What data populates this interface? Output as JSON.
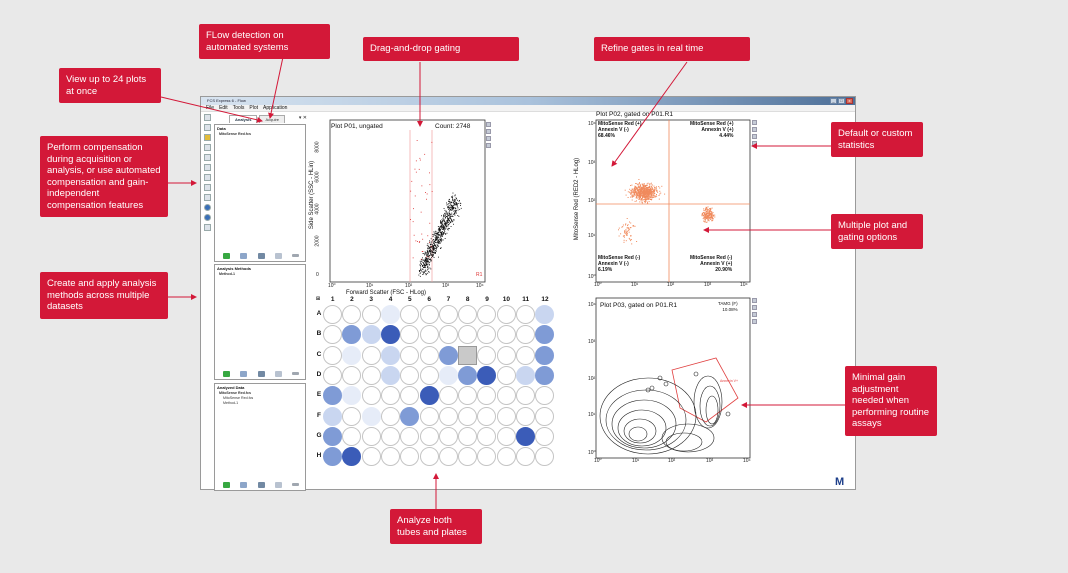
{
  "window": {
    "title": "FCS Express 6 - Flow",
    "menu": [
      "File",
      "Edit",
      "Tools",
      "Plot",
      "Application"
    ],
    "controls": [
      "_",
      "□",
      "x"
    ]
  },
  "left_panel": {
    "tabs": [
      "Analysis",
      "Acquire"
    ],
    "data_box": {
      "header": "Data",
      "item": "MitoSense Red.fcs"
    },
    "methods_box": {
      "header": "Analysis Methods",
      "item": "Method-1"
    },
    "analyzed_box": {
      "header": "Analyzed Data",
      "items": [
        "MitoSense Red.fcs",
        "MitoSense Red.fcs",
        "Method-1"
      ]
    }
  },
  "plot1": {
    "title": "Plot P01, ungated",
    "count": "Count: 2748",
    "xlabel": "Forward Scatter (FSC - HLog)",
    "ylabel": "Side Scatter (SSC - HLin)",
    "yticks": [
      "0",
      "2000",
      "4000",
      "6000",
      "8000"
    ],
    "xticks": [
      "10⁰",
      "10¹",
      "10²",
      "10³",
      "10⁴"
    ],
    "gate_label": "R1"
  },
  "plot2": {
    "title": "Plot P02, gated on P01.R1",
    "quadrants": {
      "ul": "MitoSense Red (+)\nAnnexin V (-)\n68.46%",
      "ur": "MitoSense Red (+)\nAnnexin V (+)\n4.44%",
      "ll": "MitoSense Red (-)\nAnnexin V (-)\n6.19%",
      "lr": "MitoSense Red (-)\nAnnexin V (+)\n20.90%"
    },
    "ylabel": "MitoSense Red (RED2 - HLog)",
    "xticks": [
      "10⁰",
      "10¹",
      "10²",
      "10³",
      "10⁴"
    ],
    "yticks": [
      "10⁰",
      "10¹",
      "10²",
      "10³",
      "10⁴"
    ]
  },
  "plot3": {
    "title": "Plot P03, gated on P01.R1",
    "stat": "TAMG (F)\n10.08%",
    "xticks": [
      "10⁰",
      "10¹",
      "10²",
      "10³",
      "10⁴"
    ],
    "yticks": [
      "10⁰",
      "10¹",
      "10²",
      "10³",
      "10⁴"
    ],
    "gate_label": "Annexin V+"
  },
  "plate": {
    "columns": [
      "1",
      "2",
      "3",
      "4",
      "5",
      "6",
      "7",
      "8",
      "9",
      "10",
      "11",
      "12"
    ],
    "rows": [
      "A",
      "B",
      "C",
      "D",
      "E",
      "F",
      "G",
      "H"
    ]
  },
  "callouts": [
    "View up to 24 plots at once",
    "FLow detection on automated systems",
    "Drag-and-drop gating",
    "Refine gates in real time",
    "Perform compensation during acquisition or analysis, or use automated compensation and gain-independent compensation features",
    "Create and apply analysis methods across multiple datasets",
    "Default or custom statistics",
    "Multiple plot and gating options",
    "Minimal gain adjustment needed when performing routine assays",
    "Analyze both tubes and plates"
  ],
  "colors": {
    "callout": "#d31838",
    "well_dark": "#3b5cb8",
    "well_mid": "#7f9bd6",
    "well_light": "#c9d6f0",
    "scatter_p1": "#111111",
    "scatter_p2": "#f08a5d"
  },
  "logo": "M"
}
